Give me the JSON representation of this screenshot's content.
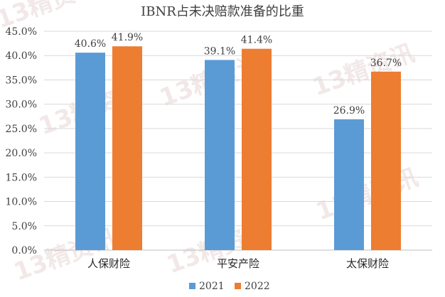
{
  "chart_data": {
    "type": "bar",
    "title": "IBNR占未决赔款准备的比重",
    "categories": [
      "人保财险",
      "平安产险",
      "太保财险"
    ],
    "series": [
      {
        "name": "2021",
        "values": [
          40.6,
          39.1,
          26.9
        ],
        "labels": [
          "40.6%",
          "39.1%",
          "26.9%"
        ]
      },
      {
        "name": "2022",
        "values": [
          41.9,
          41.4,
          36.7
        ],
        "labels": [
          "41.9%",
          "41.4%",
          "36.7%"
        ]
      }
    ],
    "yticks": [
      "0.0%",
      "5.0%",
      "10.0%",
      "15.0%",
      "20.0%",
      "25.0%",
      "30.0%",
      "35.0%",
      "40.0%",
      "45.0%"
    ],
    "ylim": [
      0,
      45
    ],
    "grid": true,
    "legend_position": "bottom",
    "colors": {
      "2021": "#5b9bd5",
      "2022": "#ed7d31",
      "grid": "#d9d9d9"
    }
  },
  "watermark": {
    "text": "13精资讯"
  }
}
